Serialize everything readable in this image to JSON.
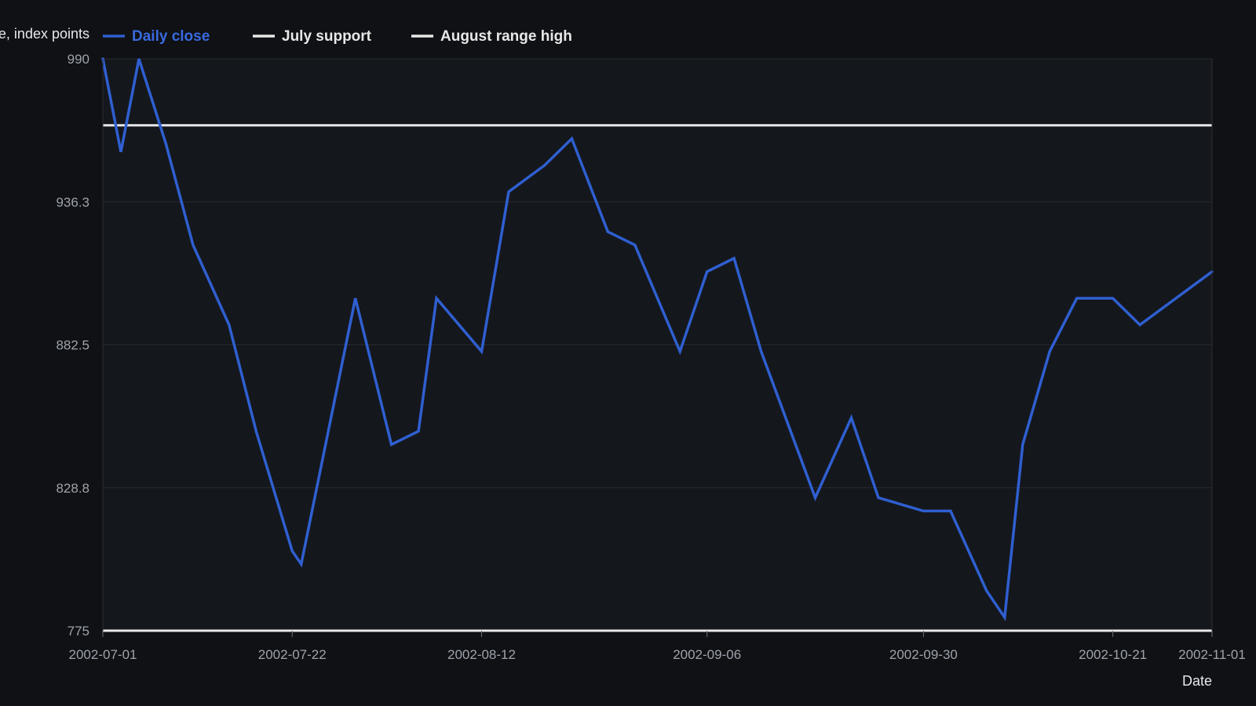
{
  "chart_data": {
    "type": "line",
    "title": "",
    "ylabel": "Close, index points",
    "xlabel": "Date",
    "ylim": [
      775,
      990
    ],
    "y_ticks": [
      "990",
      "936.3",
      "882.5",
      "828.8",
      "775"
    ],
    "y_tick_values": [
      990,
      936.25,
      882.5,
      828.75,
      775
    ],
    "x_tick_labels": [
      "2002-07-01",
      "2002-07-22",
      "2002-08-12",
      "2002-09-06",
      "2002-09-30",
      "2002-10-21",
      "2002-11-01"
    ],
    "legend_position": "top-left",
    "grid": true,
    "series": [
      {
        "name": "Daily close",
        "color": "#2f5fd0",
        "x": [
          "2002-07-01",
          "2002-07-03",
          "2002-07-05",
          "2002-07-08",
          "2002-07-11",
          "2002-07-15",
          "2002-07-18",
          "2002-07-22",
          "2002-07-23",
          "2002-07-29",
          "2002-08-02",
          "2002-08-05",
          "2002-08-07",
          "2002-08-12",
          "2002-08-15",
          "2002-08-19",
          "2002-08-22",
          "2002-08-26",
          "2002-08-29",
          "2002-09-03",
          "2002-09-06",
          "2002-09-09",
          "2002-09-12",
          "2002-09-18",
          "2002-09-22",
          "2002-09-25",
          "2002-09-30",
          "2002-10-03",
          "2002-10-07",
          "2002-10-09",
          "2002-10-11",
          "2002-10-14",
          "2002-10-17",
          "2002-10-21",
          "2002-10-24",
          "2002-11-01"
        ],
        "values": [
          990,
          955,
          990,
          958,
          920,
          890,
          850,
          805,
          800,
          900,
          845,
          850,
          900,
          880,
          940,
          950,
          960,
          925,
          920,
          880,
          910,
          915,
          880,
          825,
          855,
          825,
          820,
          820,
          790,
          780,
          845,
          880,
          900,
          900,
          890,
          910
        ]
      },
      {
        "name": "July support",
        "color": "#e8e8e8",
        "values": [
          775,
          775
        ]
      },
      {
        "name": "August range high",
        "color": "#e8e8e8",
        "values": [
          965,
          965
        ]
      }
    ]
  }
}
